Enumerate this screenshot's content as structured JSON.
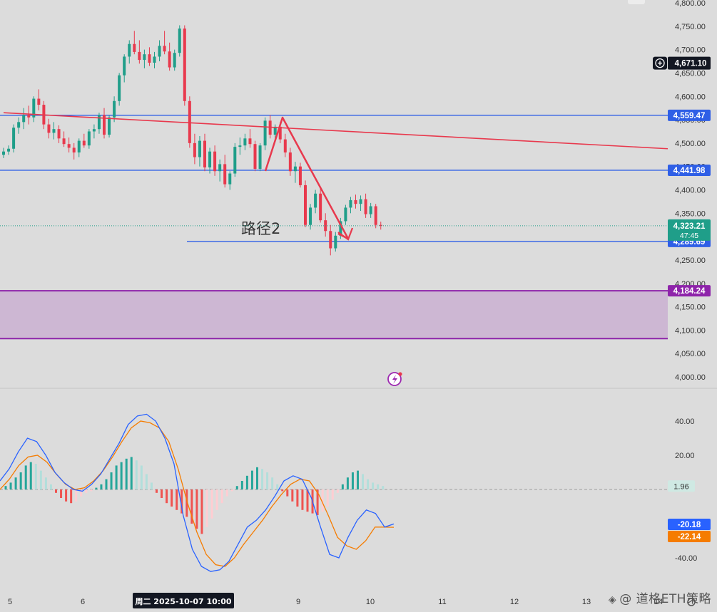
{
  "chart_data": [
    {
      "type": "candlestick",
      "title": "",
      "y_ticks": [
        "4,800.00",
        "4,750.00",
        "4,700.00",
        "4,650.00",
        "4,600.00",
        "4,550.00",
        "4,500.00",
        "4,450.00",
        "4,400.00",
        "4,350.00",
        "4,300.00",
        "4,250.00",
        "4,200.00",
        "4,150.00",
        "4,100.00",
        "4,050.00",
        "4,000.00"
      ],
      "ylim": [
        3985,
        4808
      ],
      "x_ticks": [
        "5",
        "6",
        "9",
        "10",
        "11",
        "12",
        "13",
        "14"
      ],
      "crosshair_time_label": "周二 2025-10-07   10:00",
      "annotation_text": "路径2",
      "horizontal_levels": [
        {
          "value": 4559.47,
          "label": "4,559.47",
          "color": "#2f5fe6"
        },
        {
          "value": 4441.98,
          "label": "4,441.98",
          "color": "#2f5fe6"
        },
        {
          "value": 4289.69,
          "label": "4,289.69",
          "color": "#2f5fe6"
        },
        {
          "value": 4184.24,
          "label": "4,184.24",
          "color": "#8e24aa"
        }
      ],
      "zone": {
        "from": 4082,
        "to": 4184.24,
        "color": "#cdb7d3"
      },
      "trendline": {
        "from": [
          0,
          4565
        ],
        "to": [
          96,
          4488
        ],
        "color": "#e8394d"
      },
      "crosshair_price_label": "4,671.10",
      "last_price": {
        "value": 4323.21,
        "label": "4,323.21",
        "countdown": "47:45",
        "color": "#1f9e89"
      },
      "candles": [
        [
          4475,
          4490,
          4468,
          4482
        ],
        [
          4482,
          4495,
          4475,
          4488
        ],
        [
          4488,
          4540,
          4480,
          4533
        ],
        [
          4533,
          4555,
          4520,
          4545
        ],
        [
          4545,
          4575,
          4530,
          4560
        ],
        [
          4560,
          4580,
          4540,
          4555
        ],
        [
          4555,
          4600,
          4545,
          4595
        ],
        [
          4595,
          4615,
          4570,
          4582
        ],
        [
          4582,
          4590,
          4530,
          4540
        ],
        [
          4540,
          4552,
          4510,
          4522
        ],
        [
          4522,
          4545,
          4508,
          4530
        ],
        [
          4530,
          4538,
          4500,
          4510
        ],
        [
          4510,
          4525,
          4492,
          4498
        ],
        [
          4498,
          4512,
          4480,
          4490
        ],
        [
          4490,
          4500,
          4465,
          4480
        ],
        [
          4480,
          4510,
          4470,
          4505
        ],
        [
          4505,
          4520,
          4490,
          4495
        ],
        [
          4495,
          4530,
          4488,
          4525
        ],
        [
          4525,
          4540,
          4510,
          4530
        ],
        [
          4530,
          4565,
          4520,
          4560
        ],
        [
          4560,
          4575,
          4510,
          4518
        ],
        [
          4518,
          4560,
          4512,
          4555
        ],
        [
          4555,
          4600,
          4545,
          4590
        ],
        [
          4590,
          4650,
          4580,
          4645
        ],
        [
          4645,
          4690,
          4630,
          4685
        ],
        [
          4685,
          4720,
          4670,
          4712
        ],
        [
          4712,
          4740,
          4690,
          4695
        ],
        [
          4695,
          4720,
          4670,
          4678
        ],
        [
          4678,
          4700,
          4660,
          4690
        ],
        [
          4690,
          4705,
          4665,
          4672
        ],
        [
          4672,
          4695,
          4660,
          4685
        ],
        [
          4685,
          4720,
          4675,
          4708
        ],
        [
          4708,
          4740,
          4690,
          4696
        ],
        [
          4696,
          4715,
          4655,
          4662
        ],
        [
          4662,
          4700,
          4655,
          4693
        ],
        [
          4693,
          4752,
          4685,
          4745
        ],
        [
          4745,
          4752,
          4580,
          4590
        ],
        [
          4590,
          4600,
          4490,
          4500
        ],
        [
          4500,
          4520,
          4455,
          4470
        ],
        [
          4470,
          4515,
          4450,
          4505
        ],
        [
          4505,
          4520,
          4440,
          4448
        ],
        [
          4448,
          4490,
          4435,
          4482
        ],
        [
          4482,
          4495,
          4430,
          4440
        ],
        [
          4440,
          4465,
          4418,
          4455
        ],
        [
          4455,
          4475,
          4405,
          4412
        ],
        [
          4412,
          4440,
          4400,
          4435
        ],
        [
          4435,
          4500,
          4428,
          4492
        ],
        [
          4492,
          4512,
          4475,
          4495
        ],
        [
          4495,
          4520,
          4485,
          4510
        ],
        [
          4510,
          4530,
          4490,
          4498
        ],
        [
          4498,
          4505,
          4440,
          4445
        ],
        [
          4445,
          4500,
          4440,
          4495
        ],
        [
          4495,
          4555,
          4485,
          4548
        ],
        [
          4548,
          4560,
          4510,
          4518
        ],
        [
          4518,
          4540,
          4505,
          4535
        ],
        [
          4535,
          4545,
          4500,
          4508
        ],
        [
          4508,
          4520,
          4470,
          4480
        ],
        [
          4480,
          4490,
          4430,
          4440
        ],
        [
          4440,
          4460,
          4415,
          4450
        ],
        [
          4450,
          4458,
          4405,
          4410
        ],
        [
          4410,
          4420,
          4320,
          4325
        ],
        [
          4325,
          4370,
          4315,
          4362
        ],
        [
          4362,
          4400,
          4350,
          4392
        ],
        [
          4392,
          4405,
          4330,
          4335
        ],
        [
          4335,
          4350,
          4300,
          4312
        ],
        [
          4312,
          4325,
          4260,
          4275
        ],
        [
          4275,
          4310,
          4268,
          4302
        ],
        [
          4302,
          4340,
          4295,
          4333
        ],
        [
          4333,
          4368,
          4325,
          4362
        ],
        [
          4362,
          4385,
          4350,
          4378
        ],
        [
          4378,
          4390,
          4360,
          4370
        ],
        [
          4370,
          4388,
          4355,
          4380
        ],
        [
          4380,
          4392,
          4340,
          4348
        ],
        [
          4348,
          4372,
          4340,
          4365
        ],
        [
          4365,
          4370,
          4318,
          4325
        ],
        [
          4325,
          4332,
          4315,
          4323
        ]
      ]
    },
    {
      "type": "macd",
      "y_ticks": [
        "40.00",
        "20.00",
        "-40.00"
      ],
      "ylim": [
        -50,
        50
      ],
      "histogram_value_label": "1.96",
      "macd": {
        "label": "-20.18",
        "color": "#2962ff"
      },
      "signal": {
        "label": "-22.14",
        "color": "#f57c00"
      },
      "histogram": [
        2,
        4,
        7,
        10,
        14,
        16,
        15,
        11,
        7,
        3,
        -2,
        -5,
        -7,
        -8,
        -7,
        -4,
        -2,
        -1,
        1,
        3,
        6,
        10,
        14,
        16,
        18,
        19,
        17,
        14,
        9,
        4,
        -2,
        -5,
        -8,
        -10,
        -12,
        -14,
        -16,
        -20,
        -23,
        -26,
        -22,
        -17,
        -12,
        -8,
        -4,
        -1,
        2,
        5,
        8,
        11,
        13,
        12,
        10,
        7,
        3,
        -1,
        -4,
        -7,
        -10,
        -12,
        -13,
        -14,
        -15,
        -13,
        -10,
        -6,
        -2,
        3,
        7,
        10,
        11,
        9,
        6,
        4,
        3,
        2
      ],
      "macd_line": [
        5,
        12,
        22,
        30,
        28,
        20,
        10,
        4,
        0,
        -1,
        3,
        9,
        18,
        27,
        38,
        43,
        44,
        40,
        30,
        15,
        -15,
        -35,
        -45,
        -48,
        -47,
        -42,
        -32,
        -22,
        -18,
        -12,
        -4,
        5,
        8,
        6,
        -5,
        -22,
        -38,
        -40,
        -28,
        -18,
        -12,
        -14,
        -22,
        -20.18
      ],
      "signal_line": [
        0,
        6,
        14,
        19,
        20,
        16,
        9,
        3,
        0,
        1,
        5,
        11,
        19,
        28,
        36,
        40,
        39,
        36,
        28,
        12,
        -8,
        -25,
        -38,
        -44,
        -45,
        -40,
        -32,
        -25,
        -18,
        -10,
        -3,
        3,
        6,
        5,
        -3,
        -15,
        -28,
        -33,
        -35,
        -30,
        -22,
        -22,
        -22.14
      ]
    }
  ],
  "colors": {
    "up": "#1f9e89",
    "down": "#e8394d",
    "hist_up_strong": "#26a69a",
    "hist_up_weak": "#b2dfdb",
    "hist_down_strong": "#ef5350",
    "hist_down_weak": "#ffcdd2"
  },
  "icons": {
    "crosshair_add": "plus-circle-icon",
    "event": "lightning-event-icon",
    "settings": "gear-icon"
  },
  "watermark": "@ 道格ETH策略"
}
